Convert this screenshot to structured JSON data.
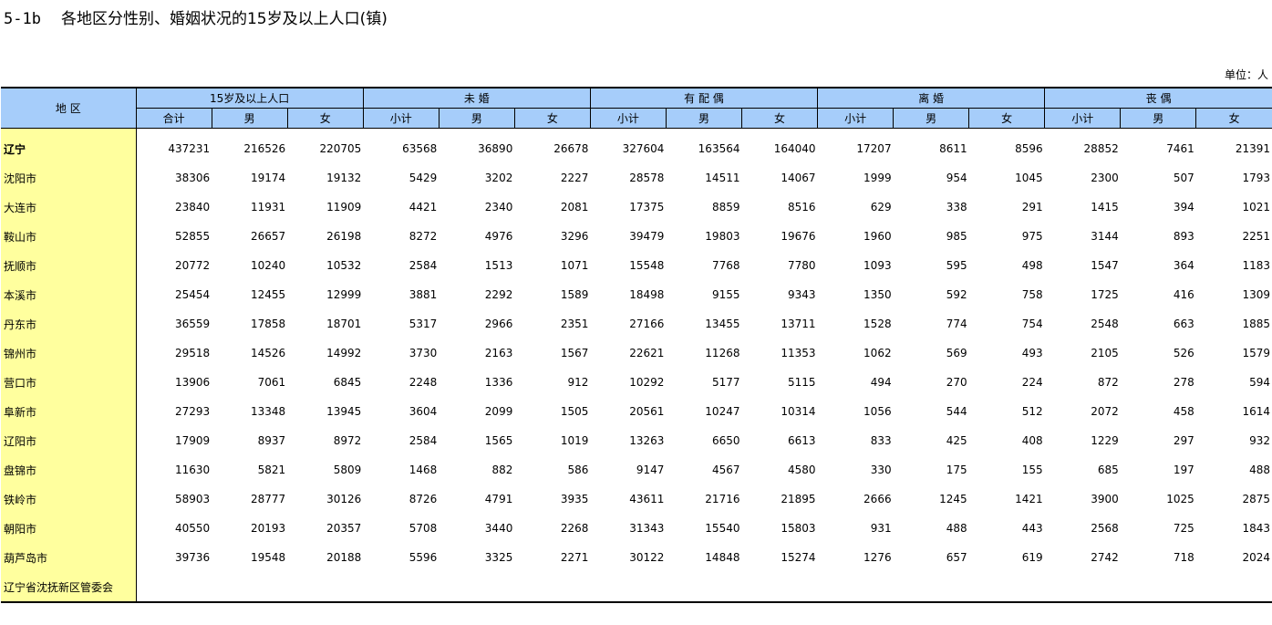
{
  "title": {
    "code": "5-1b",
    "text": "各地区分性别、婚姻状况的15岁及以上人口(镇)"
  },
  "unit_label": "单位：人",
  "header": {
    "region": "地 区",
    "groups": [
      "15岁及以上人口",
      "未 婚",
      "有 配 偶",
      "离 婚",
      "丧 偶"
    ],
    "sub_first": [
      "合计",
      "男",
      "女"
    ],
    "sub": [
      "小计",
      "男",
      "女"
    ]
  },
  "rows": [
    {
      "region": "辽宁",
      "values": [
        "437231",
        "216526",
        "220705",
        "63568",
        "36890",
        "26678",
        "327604",
        "163564",
        "164040",
        "17207",
        "8611",
        "8596",
        "28852",
        "7461",
        "21391"
      ]
    },
    {
      "region": "沈阳市",
      "values": [
        "38306",
        "19174",
        "19132",
        "5429",
        "3202",
        "2227",
        "28578",
        "14511",
        "14067",
        "1999",
        "954",
        "1045",
        "2300",
        "507",
        "1793"
      ]
    },
    {
      "region": "大连市",
      "values": [
        "23840",
        "11931",
        "11909",
        "4421",
        "2340",
        "2081",
        "17375",
        "8859",
        "8516",
        "629",
        "338",
        "291",
        "1415",
        "394",
        "1021"
      ]
    },
    {
      "region": "鞍山市",
      "values": [
        "52855",
        "26657",
        "26198",
        "8272",
        "4976",
        "3296",
        "39479",
        "19803",
        "19676",
        "1960",
        "985",
        "975",
        "3144",
        "893",
        "2251"
      ]
    },
    {
      "region": "抚顺市",
      "values": [
        "20772",
        "10240",
        "10532",
        "2584",
        "1513",
        "1071",
        "15548",
        "7768",
        "7780",
        "1093",
        "595",
        "498",
        "1547",
        "364",
        "1183"
      ]
    },
    {
      "region": "本溪市",
      "values": [
        "25454",
        "12455",
        "12999",
        "3881",
        "2292",
        "1589",
        "18498",
        "9155",
        "9343",
        "1350",
        "592",
        "758",
        "1725",
        "416",
        "1309"
      ]
    },
    {
      "region": "丹东市",
      "values": [
        "36559",
        "17858",
        "18701",
        "5317",
        "2966",
        "2351",
        "27166",
        "13455",
        "13711",
        "1528",
        "774",
        "754",
        "2548",
        "663",
        "1885"
      ]
    },
    {
      "region": "锦州市",
      "values": [
        "29518",
        "14526",
        "14992",
        "3730",
        "2163",
        "1567",
        "22621",
        "11268",
        "11353",
        "1062",
        "569",
        "493",
        "2105",
        "526",
        "1579"
      ]
    },
    {
      "region": "营口市",
      "values": [
        "13906",
        "7061",
        "6845",
        "2248",
        "1336",
        "912",
        "10292",
        "5177",
        "5115",
        "494",
        "270",
        "224",
        "872",
        "278",
        "594"
      ]
    },
    {
      "region": "阜新市",
      "values": [
        "27293",
        "13348",
        "13945",
        "3604",
        "2099",
        "1505",
        "20561",
        "10247",
        "10314",
        "1056",
        "544",
        "512",
        "2072",
        "458",
        "1614"
      ]
    },
    {
      "region": "辽阳市",
      "values": [
        "17909",
        "8937",
        "8972",
        "2584",
        "1565",
        "1019",
        "13263",
        "6650",
        "6613",
        "833",
        "425",
        "408",
        "1229",
        "297",
        "932"
      ]
    },
    {
      "region": "盘锦市",
      "values": [
        "11630",
        "5821",
        "5809",
        "1468",
        "882",
        "586",
        "9147",
        "4567",
        "4580",
        "330",
        "175",
        "155",
        "685",
        "197",
        "488"
      ]
    },
    {
      "region": "铁岭市",
      "values": [
        "58903",
        "28777",
        "30126",
        "8726",
        "4791",
        "3935",
        "43611",
        "21716",
        "21895",
        "2666",
        "1245",
        "1421",
        "3900",
        "1025",
        "2875"
      ]
    },
    {
      "region": "朝阳市",
      "values": [
        "40550",
        "20193",
        "20357",
        "5708",
        "3440",
        "2268",
        "31343",
        "15540",
        "15803",
        "931",
        "488",
        "443",
        "2568",
        "725",
        "1843"
      ]
    },
    {
      "region": "葫芦岛市",
      "values": [
        "39736",
        "19548",
        "20188",
        "5596",
        "3325",
        "2271",
        "30122",
        "14848",
        "15274",
        "1276",
        "657",
        "619",
        "2742",
        "718",
        "2024"
      ]
    },
    {
      "region": "辽宁省沈抚新区管委会",
      "values": [
        "",
        "",
        "",
        "",
        "",
        "",
        "",
        "",
        "",
        "",
        "",
        "",
        "",
        "",
        ""
      ]
    }
  ]
}
